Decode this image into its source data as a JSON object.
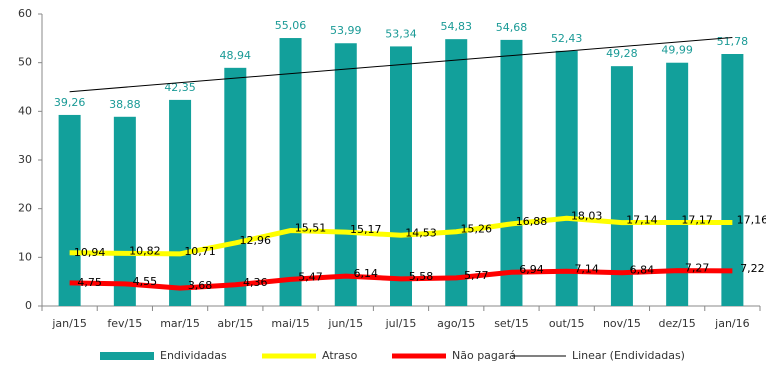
{
  "chart_data": {
    "type": "bar_line",
    "categories": [
      "jan/15",
      "fev/15",
      "mar/15",
      "abr/15",
      "mai/15",
      "jun/15",
      "jul/15",
      "ago/15",
      "set/15",
      "out/15",
      "nov/15",
      "dez/15",
      "jan/16"
    ],
    "series": [
      {
        "name": "Endividadas",
        "type": "bar",
        "color": "#12a09b",
        "values": [
          39.26,
          38.88,
          42.35,
          48.94,
          55.06,
          53.99,
          53.34,
          54.83,
          54.68,
          52.43,
          49.28,
          49.99,
          51.78
        ],
        "value_labels": [
          "39,26",
          "38,88",
          "42,35",
          "48,94",
          "55,06",
          "53,99",
          "53,34",
          "54,83",
          "54,68",
          "52,43",
          "49,28",
          "49,99",
          "51,78"
        ]
      },
      {
        "name": "Atraso",
        "type": "line",
        "color": "#ffff00",
        "values": [
          10.94,
          10.82,
          10.71,
          12.96,
          15.51,
          15.17,
          14.53,
          15.26,
          16.88,
          18.03,
          17.14,
          17.17,
          17.16
        ],
        "value_labels": [
          "10,94",
          "10,82",
          "10,71",
          "12,96",
          "15,51",
          "15,17",
          "14,53",
          "15,26",
          "16,88",
          "18,03",
          "17,14",
          "17,17",
          "17,16"
        ]
      },
      {
        "name": "Não pagará",
        "type": "line",
        "color": "#ff0000",
        "values": [
          4.75,
          4.55,
          3.68,
          4.36,
          5.47,
          6.14,
          5.58,
          5.77,
          6.94,
          7.14,
          6.84,
          7.27,
          7.22
        ],
        "value_labels": [
          "4,75",
          "4,55",
          "3,68",
          "4,36",
          "5,47",
          "6,14",
          "5,58",
          "5,77",
          "6,94",
          "7,14",
          "6,84",
          "7,27",
          "7,22"
        ]
      },
      {
        "name": "Linear (Endividadas)",
        "type": "trendline",
        "color": "#000000"
      }
    ],
    "ylim": [
      0,
      60
    ],
    "yticks": [
      0,
      10,
      20,
      30,
      40,
      50,
      60
    ],
    "grid": false,
    "legend": "bottom"
  }
}
